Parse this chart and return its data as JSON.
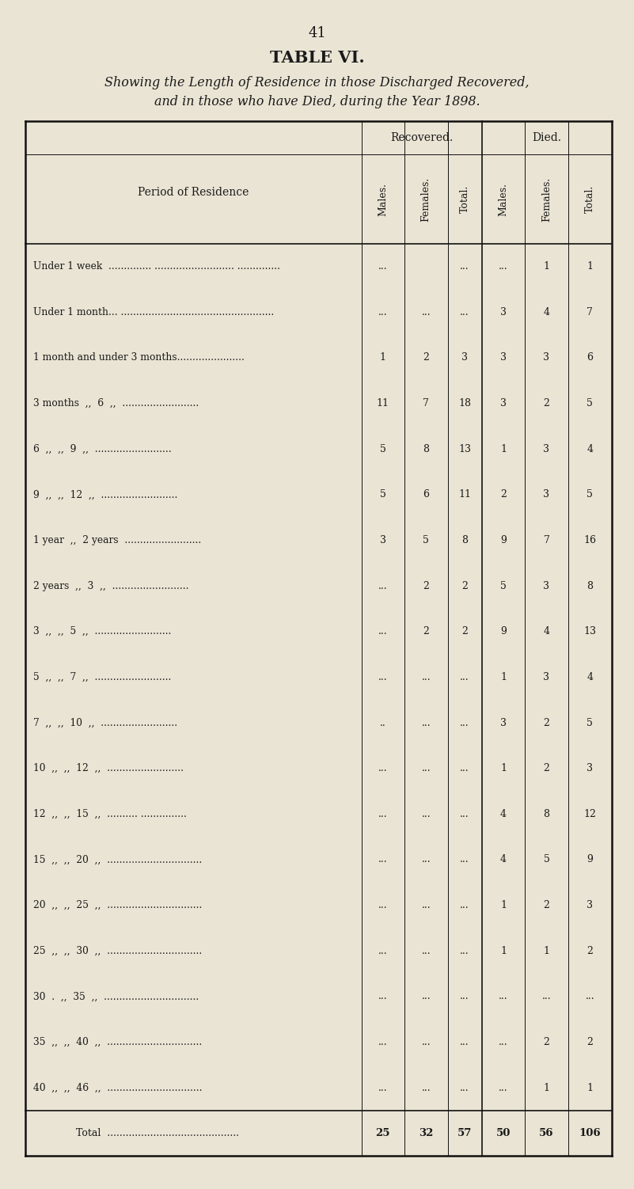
{
  "page_number": "41",
  "title": "TABLE VI.",
  "subtitle_line1": "Showing the Length of Residence in those Discharged Recovered,",
  "subtitle_line2": "and in those who have Died, during the Year 1898.",
  "col_headers_sub": [
    "Males.",
    "Females.",
    "Total.",
    "Males.",
    "Females.",
    "Total."
  ],
  "period_label": "Period of Residence",
  "rows": [
    {
      "label": "Under 1 week  .............. .......................... ..............",
      "rec_m": "...",
      "rec_f": "",
      "rec_t": "...",
      "die_m": "...",
      "die_f": "1",
      "die_t": "1"
    },
    {
      "label": "Under 1 month... ..................................................",
      "rec_m": "...",
      "rec_f": "...",
      "rec_t": "...",
      "die_m": "3",
      "die_f": "4",
      "die_t": "7"
    },
    {
      "label": "1 month and under 3 months......................",
      "rec_m": "1",
      "rec_f": "2",
      "rec_t": "3",
      "die_m": "3",
      "die_f": "3",
      "die_t": "6"
    },
    {
      "label": "3 months  ,,  6  ,,  .........................",
      "rec_m": "11",
      "rec_f": "7",
      "rec_t": "18",
      "die_m": "3",
      "die_f": "2",
      "die_t": "5"
    },
    {
      "label": "6  ,,  ,,  9  ,,  .........................",
      "rec_m": "5",
      "rec_f": "8",
      "rec_t": "13",
      "die_m": "1",
      "die_f": "3",
      "die_t": "4"
    },
    {
      "label": "9  ,,  ,,  12  ,,  .........................",
      "rec_m": "5",
      "rec_f": "6",
      "rec_t": "11",
      "die_m": "2",
      "die_f": "3",
      "die_t": "5"
    },
    {
      "label": "1 year  ,,  2 years  .........................",
      "rec_m": "3",
      "rec_f": "5",
      "rec_t": "8",
      "die_m": "9",
      "die_f": "7",
      "die_t": "16"
    },
    {
      "label": "2 years  ,,  3  ,,  .........................",
      "rec_m": "...",
      "rec_f": "2",
      "rec_t": "2",
      "die_m": "5",
      "die_f": "3",
      "die_t": "8"
    },
    {
      "label": "3  ,,  ,,  5  ,,  .........................",
      "rec_m": "...",
      "rec_f": "2",
      "rec_t": "2",
      "die_m": "9",
      "die_f": "4",
      "die_t": "13"
    },
    {
      "label": "5  ,,  ,,  7  ,,  .........................",
      "rec_m": "...",
      "rec_f": "...",
      "rec_t": "...",
      "die_m": "1",
      "die_f": "3",
      "die_t": "4"
    },
    {
      "label": "7  ,,  ,,  10  ,,  .........................",
      "rec_m": "..",
      "rec_f": "...",
      "rec_t": "...",
      "die_m": "3",
      "die_f": "2",
      "die_t": "5"
    },
    {
      "label": "10  ,,  ,,  12  ,,  .........................",
      "rec_m": "...",
      "rec_f": "...",
      "rec_t": "...",
      "die_m": "1",
      "die_f": "2",
      "die_t": "3"
    },
    {
      "label": "12  ,,  ,,  15  ,,  .......... ...............",
      "rec_m": "...",
      "rec_f": "...",
      "rec_t": "...",
      "die_m": "4",
      "die_f": "8",
      "die_t": "12"
    },
    {
      "label": "15  ,,  ,,  20  ,,  ...............................",
      "rec_m": "...",
      "rec_f": "...",
      "rec_t": "...",
      "die_m": "4",
      "die_f": "5",
      "die_t": "9"
    },
    {
      "label": "20  ,,  ,,  25  ,,  ...............................",
      "rec_m": "...",
      "rec_f": "...",
      "rec_t": "...",
      "die_m": "1",
      "die_f": "2",
      "die_t": "3"
    },
    {
      "label": "25  ,,  ,,  30  ,,  ...............................",
      "rec_m": "...",
      "rec_f": "...",
      "rec_t": "...",
      "die_m": "1",
      "die_f": "1",
      "die_t": "2"
    },
    {
      "label": "30  .  ,,  35  ,,  ...............................",
      "rec_m": "...",
      "rec_f": "...",
      "rec_t": "...",
      "die_m": "...",
      "die_f": "...",
      "die_t": "..."
    },
    {
      "label": "35  ,,  ,,  40  ,,  ...............................",
      "rec_m": "...",
      "rec_f": "...",
      "rec_t": "...",
      "die_m": "...",
      "die_f": "2",
      "die_t": "2"
    },
    {
      "label": "40  ,,  ,,  46  ,,  ...............................",
      "rec_m": "...",
      "rec_f": "...",
      "rec_t": "...",
      "die_m": "...",
      "die_f": "1",
      "die_t": "1"
    }
  ],
  "total_row": {
    "label": "Total  ...........................................",
    "rec_m": "25",
    "rec_f": "32",
    "rec_t": "57",
    "die_m": "50",
    "die_f": "56",
    "die_t": "106"
  },
  "bg_color": "#EAE4D4",
  "text_color": "#1a1a1a",
  "line_color": "#111111"
}
